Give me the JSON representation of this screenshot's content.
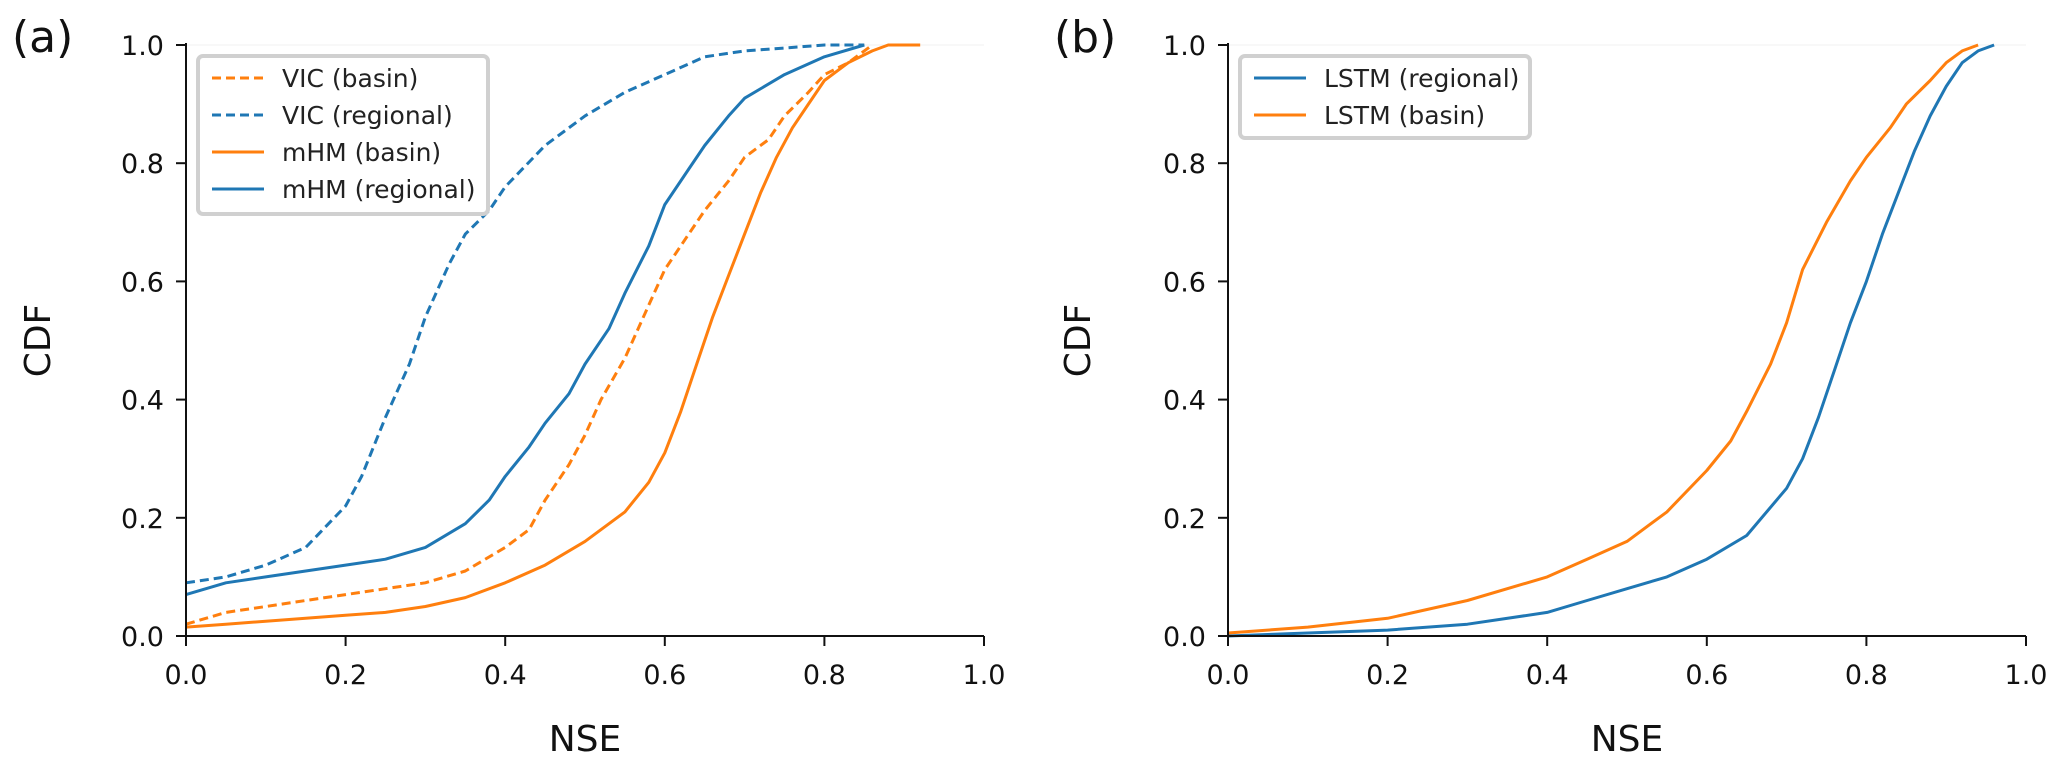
{
  "chart_data": [
    {
      "type": "line",
      "panel_label": "(a)",
      "xlabel": "NSE",
      "ylabel": "CDF",
      "xlim": [
        0,
        1
      ],
      "ylim": [
        0,
        1
      ],
      "xticks": [
        "0.0",
        "0.2",
        "0.4",
        "0.6",
        "0.8",
        "1.0"
      ],
      "yticks": [
        "0.0",
        "0.2",
        "0.4",
        "0.6",
        "0.8",
        "1.0"
      ],
      "legend_position": "top-left",
      "grid": false,
      "series": [
        {
          "name": "VIC (basin)",
          "color": "#ff7f0e",
          "style": "dashed",
          "x": [
            0.0,
            0.05,
            0.1,
            0.15,
            0.2,
            0.25,
            0.3,
            0.35,
            0.4,
            0.43,
            0.45,
            0.48,
            0.5,
            0.52,
            0.55,
            0.58,
            0.6,
            0.63,
            0.65,
            0.68,
            0.7,
            0.73,
            0.75,
            0.78,
            0.8,
            0.83,
            0.85,
            0.86
          ],
          "y": [
            0.02,
            0.04,
            0.05,
            0.06,
            0.07,
            0.08,
            0.09,
            0.11,
            0.15,
            0.18,
            0.23,
            0.29,
            0.34,
            0.4,
            0.47,
            0.56,
            0.62,
            0.68,
            0.72,
            0.77,
            0.81,
            0.84,
            0.88,
            0.92,
            0.95,
            0.97,
            0.99,
            1.0
          ]
        },
        {
          "name": "VIC (regional)",
          "color": "#1f77b4",
          "style": "dashed",
          "x": [
            0.0,
            0.05,
            0.1,
            0.15,
            0.2,
            0.22,
            0.25,
            0.28,
            0.3,
            0.33,
            0.35,
            0.38,
            0.4,
            0.45,
            0.5,
            0.55,
            0.6,
            0.65,
            0.7,
            0.75,
            0.8,
            0.85
          ],
          "y": [
            0.09,
            0.1,
            0.12,
            0.15,
            0.22,
            0.27,
            0.37,
            0.46,
            0.54,
            0.63,
            0.68,
            0.72,
            0.76,
            0.83,
            0.88,
            0.92,
            0.95,
            0.98,
            0.99,
            0.995,
            1.0,
            1.0
          ]
        },
        {
          "name": "mHM (basin)",
          "color": "#ff7f0e",
          "style": "solid",
          "x": [
            0.0,
            0.05,
            0.1,
            0.15,
            0.2,
            0.25,
            0.3,
            0.35,
            0.4,
            0.45,
            0.5,
            0.55,
            0.58,
            0.6,
            0.62,
            0.64,
            0.66,
            0.68,
            0.7,
            0.72,
            0.74,
            0.76,
            0.78,
            0.8,
            0.83,
            0.86,
            0.88,
            0.92
          ],
          "y": [
            0.015,
            0.02,
            0.025,
            0.03,
            0.035,
            0.04,
            0.05,
            0.065,
            0.09,
            0.12,
            0.16,
            0.21,
            0.26,
            0.31,
            0.38,
            0.46,
            0.54,
            0.61,
            0.68,
            0.75,
            0.81,
            0.86,
            0.9,
            0.94,
            0.97,
            0.99,
            1.0,
            1.0
          ]
        },
        {
          "name": "mHM (regional)",
          "color": "#1f77b4",
          "style": "solid",
          "x": [
            0.0,
            0.05,
            0.1,
            0.15,
            0.2,
            0.25,
            0.3,
            0.35,
            0.38,
            0.4,
            0.43,
            0.45,
            0.48,
            0.5,
            0.53,
            0.55,
            0.58,
            0.6,
            0.63,
            0.65,
            0.68,
            0.7,
            0.75,
            0.8,
            0.85
          ],
          "y": [
            0.07,
            0.09,
            0.1,
            0.11,
            0.12,
            0.13,
            0.15,
            0.19,
            0.23,
            0.27,
            0.32,
            0.36,
            0.41,
            0.46,
            0.52,
            0.58,
            0.66,
            0.73,
            0.79,
            0.83,
            0.88,
            0.91,
            0.95,
            0.98,
            1.0
          ]
        }
      ]
    },
    {
      "type": "line",
      "panel_label": "(b)",
      "xlabel": "NSE",
      "ylabel": "CDF",
      "xlim": [
        0,
        1
      ],
      "ylim": [
        0,
        1
      ],
      "xticks": [
        "0.0",
        "0.2",
        "0.4",
        "0.6",
        "0.8",
        "1.0"
      ],
      "yticks": [
        "0.0",
        "0.2",
        "0.4",
        "0.6",
        "0.8",
        "1.0"
      ],
      "legend_position": "top-left",
      "grid": false,
      "series": [
        {
          "name": "LSTM (regional)",
          "color": "#1f77b4",
          "style": "solid",
          "x": [
            0.0,
            0.1,
            0.2,
            0.3,
            0.4,
            0.45,
            0.5,
            0.55,
            0.6,
            0.65,
            0.7,
            0.72,
            0.74,
            0.76,
            0.78,
            0.8,
            0.82,
            0.84,
            0.86,
            0.88,
            0.9,
            0.92,
            0.94,
            0.96
          ],
          "y": [
            0.0,
            0.005,
            0.01,
            0.02,
            0.04,
            0.06,
            0.08,
            0.1,
            0.13,
            0.17,
            0.25,
            0.3,
            0.37,
            0.45,
            0.53,
            0.6,
            0.68,
            0.75,
            0.82,
            0.88,
            0.93,
            0.97,
            0.99,
            1.0
          ]
        },
        {
          "name": "LSTM (basin)",
          "color": "#ff7f0e",
          "style": "solid",
          "x": [
            0.0,
            0.1,
            0.2,
            0.3,
            0.4,
            0.45,
            0.5,
            0.55,
            0.6,
            0.63,
            0.65,
            0.68,
            0.7,
            0.72,
            0.75,
            0.78,
            0.8,
            0.83,
            0.85,
            0.88,
            0.9,
            0.92,
            0.94
          ],
          "y": [
            0.005,
            0.015,
            0.03,
            0.06,
            0.1,
            0.13,
            0.16,
            0.21,
            0.28,
            0.33,
            0.38,
            0.46,
            0.53,
            0.62,
            0.7,
            0.77,
            0.81,
            0.86,
            0.9,
            0.94,
            0.97,
            0.99,
            1.0
          ]
        }
      ]
    }
  ]
}
